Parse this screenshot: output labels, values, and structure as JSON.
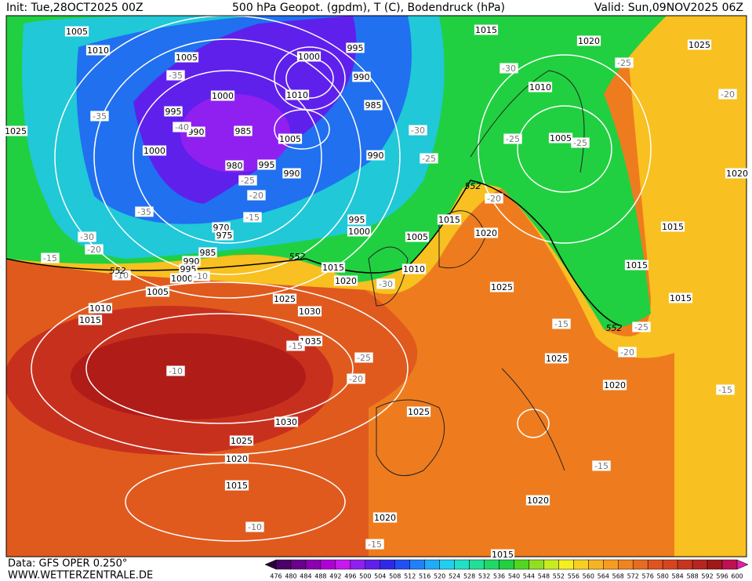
{
  "header": {
    "init": "Init: Tue,28OCT2025 00Z",
    "title": "500 hPa Geopot. (gpdm), T (C), Bodendruck (hPa)",
    "valid": "Valid: Sun,09NOV2025 06Z"
  },
  "footer": {
    "data_source": "Data: GFS OPER 0.250°",
    "website": "WWW.WETTERZENTRALE.DE"
  },
  "colorbar": {
    "ticks": [
      476,
      480,
      484,
      488,
      492,
      496,
      500,
      504,
      508,
      512,
      516,
      520,
      524,
      528,
      532,
      536,
      540,
      544,
      548,
      552,
      556,
      560,
      564,
      568,
      572,
      576,
      580,
      584,
      588,
      592,
      596,
      600
    ],
    "colors": [
      "#2a0038",
      "#4a0066",
      "#6a008c",
      "#8c00b0",
      "#b000d8",
      "#c818f0",
      "#9020f0",
      "#6020ec",
      "#3028e8",
      "#2050f4",
      "#2080f8",
      "#20acf8",
      "#20d0f0",
      "#20e0c8",
      "#20e098",
      "#20d868",
      "#20d040",
      "#50d820",
      "#90e020",
      "#c8ec20",
      "#f4f020",
      "#f8d020",
      "#f8b420",
      "#f89c20",
      "#f08420",
      "#e86c20",
      "#e05420",
      "#d84420",
      "#c83420",
      "#b82420",
      "#a01818",
      "#c01050",
      "#e020a8"
    ]
  },
  "isobar_labels": [
    1005,
    1010,
    1005,
    1000,
    995,
    990,
    985,
    1000,
    980,
    995,
    990,
    970,
    975,
    985,
    990,
    995,
    1000,
    1005,
    1010,
    1015,
    1000,
    995,
    990,
    985,
    1010,
    1005,
    990,
    995,
    1000,
    1005,
    1010,
    1015,
    1020,
    1025,
    1030,
    1035,
    1030,
    1025,
    1020,
    1015,
    1020,
    1025,
    1020,
    1015,
    1015,
    1020,
    1025,
    1010,
    1005,
    1015,
    1020,
    1025,
    1015,
    1015,
    1015,
    1020,
    1025,
    1020,
    1025
  ],
  "temperature_labels": [
    -35,
    -35,
    -40,
    -35,
    -30,
    -20,
    -25,
    -20,
    -15,
    -15,
    -10,
    -10,
    -30,
    -15,
    -25,
    -20,
    -10,
    -30,
    -25,
    -30,
    -25,
    -25,
    -25,
    -20,
    -20,
    -15,
    -25,
    -20,
    -15,
    -15,
    -10,
    -15
  ],
  "contour_552_labels": [
    552,
    552,
    552,
    552
  ]
}
